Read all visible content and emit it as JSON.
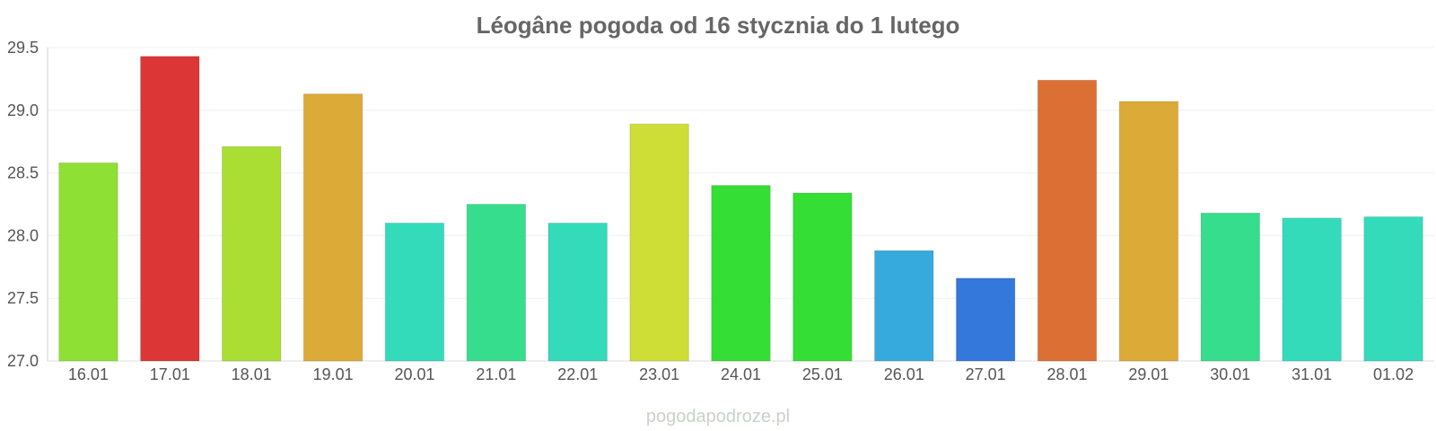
{
  "chart_data": {
    "type": "bar",
    "title": "Léogâne pogoda od 16 stycznia do 1 lutego",
    "categories": [
      "16.01",
      "17.01",
      "18.01",
      "19.01",
      "20.01",
      "21.01",
      "22.01",
      "23.01",
      "24.01",
      "25.01",
      "26.01",
      "27.01",
      "28.01",
      "29.01",
      "30.01",
      "31.01",
      "01.02"
    ],
    "values": [
      28.58,
      29.43,
      28.71,
      29.13,
      28.1,
      28.25,
      28.1,
      28.89,
      28.4,
      28.34,
      27.88,
      27.66,
      29.24,
      29.07,
      28.18,
      28.14,
      28.15
    ],
    "colors": [
      "#8ee034",
      "#dc3636",
      "#aade32",
      "#dcaa36",
      "#34dbbb",
      "#36dd8c",
      "#34dbbb",
      "#cede36",
      "#34de34",
      "#34de34",
      "#36aadc",
      "#3478dc",
      "#dc7034",
      "#dcaa36",
      "#36dd8c",
      "#34dbbb",
      "#34dbbb"
    ],
    "ylim": [
      27.0,
      29.5
    ],
    "yticks": [
      "27.0",
      "27.5",
      "28.0",
      "28.5",
      "29.0",
      "29.5"
    ],
    "grid": true,
    "xlabel": "",
    "ylabel": ""
  },
  "watermark": "pogodapodroze.pl"
}
